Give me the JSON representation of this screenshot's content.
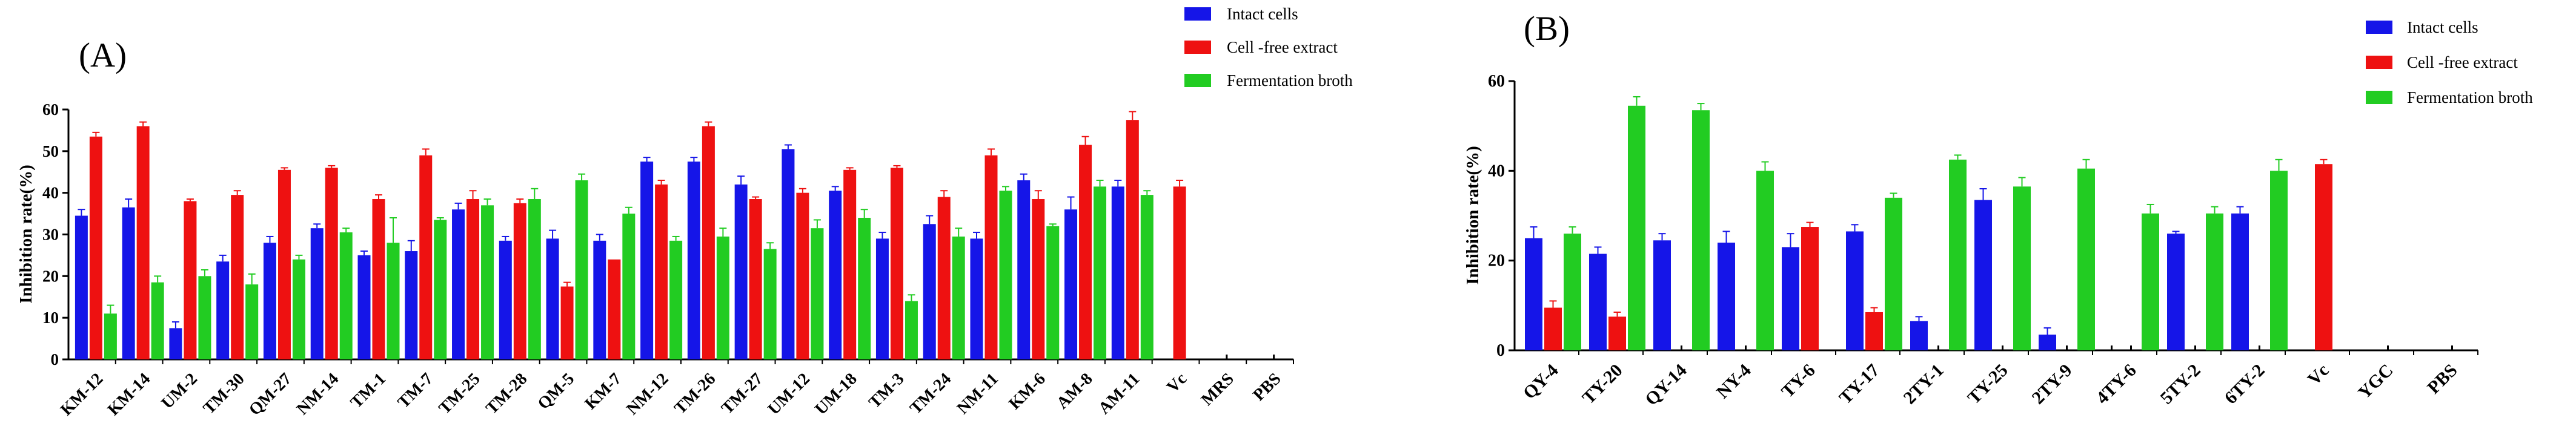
{
  "colors": {
    "intact": "#1515e8",
    "cfe": "#ee1111",
    "broth": "#22cc22",
    "axis": "#000000"
  },
  "chart_data": [
    {
      "type": "bar",
      "panel_label": "(A)",
      "ylabel": "Inhibition rate(%)",
      "xlabel": "",
      "ylim": [
        0,
        60
      ],
      "yticks": [
        "0",
        "10",
        "20",
        "30",
        "40",
        "50",
        "60"
      ],
      "legend_position": "top-right",
      "categories": [
        "KM-12",
        "KM-14",
        "UM-2",
        "TM-30",
        "QM-27",
        "NM-14",
        "TM-1",
        "TM-7",
        "TM-25",
        "TM-28",
        "QM-5",
        "KM-7",
        "NM-12",
        "TM-26",
        "TM-27",
        "UM-12",
        "UM-18",
        "TM-3",
        "TM-24",
        "NM-11",
        "KM-6",
        "AM-8",
        "AM-11",
        "Vc",
        "MRS",
        "PBS"
      ],
      "series": [
        {
          "name": "Intact cells",
          "values": [
            34.5,
            36.5,
            7.5,
            23.5,
            28,
            31.5,
            25,
            26,
            36,
            28.5,
            29,
            28.5,
            47.5,
            47.5,
            42,
            50.5,
            40.5,
            29,
            32.5,
            29,
            43,
            36,
            41.5,
            null,
            null,
            null
          ],
          "errors": [
            1.5,
            2,
            1.5,
            1.5,
            1.5,
            1,
            1,
            2.5,
            1.5,
            1,
            2,
            1.5,
            1,
            1,
            2,
            1,
            1,
            1.5,
            2,
            1.5,
            1.5,
            3,
            1.5,
            null,
            null,
            null
          ]
        },
        {
          "name": "Cell -free extract",
          "values": [
            53.5,
            56,
            38,
            39.5,
            45.5,
            46,
            38.5,
            49,
            38.5,
            37.5,
            17.5,
            24,
            42,
            56,
            38.5,
            40,
            45.5,
            46,
            39,
            49,
            38.5,
            51.5,
            57.5,
            41.5,
            0,
            0
          ],
          "errors": [
            1,
            1,
            0.5,
            1,
            0.5,
            0.5,
            1,
            1.5,
            2,
            1,
            1,
            0,
            1,
            1,
            0.5,
            1,
            0.5,
            0.5,
            1.5,
            1.5,
            2,
            2,
            2,
            1.5,
            0,
            0
          ]
        },
        {
          "name": "Fermentation broth",
          "values": [
            11,
            18.5,
            20,
            18,
            24,
            30.5,
            28,
            33.5,
            37,
            38.5,
            43,
            35,
            28.5,
            29.5,
            26.5,
            31.5,
            34,
            14,
            29.5,
            40.5,
            32,
            41.5,
            39.5,
            null,
            null,
            null
          ],
          "errors": [
            2,
            1.5,
            1.5,
            2.5,
            1,
            1,
            6,
            0.5,
            1.5,
            2.5,
            1.5,
            1.5,
            1,
            2,
            1.5,
            2,
            2,
            1.5,
            2,
            1,
            0.5,
            1.5,
            1,
            null,
            null,
            null
          ]
        }
      ]
    },
    {
      "type": "bar",
      "panel_label": "(B)",
      "ylabel": "Inhibition rate(%)",
      "xlabel": "",
      "ylim": [
        0,
        60
      ],
      "yticks": [
        "0",
        "20",
        "40",
        "60"
      ],
      "legend_position": "top-right",
      "categories": [
        "QY-4",
        "TY-20",
        "QY-14",
        "NY-4",
        "TY-6",
        "TY-17",
        "2TY-1",
        "TY-25",
        "2TY-9",
        "4TY-6",
        "5TY-2",
        "6TY-2",
        "Vc",
        "YGC",
        "PBS"
      ],
      "series": [
        {
          "name": "Intact cells",
          "values": [
            25,
            21.5,
            24.5,
            24,
            23,
            26.5,
            6.5,
            33.5,
            3.5,
            0,
            26,
            30.5,
            null,
            null,
            null
          ],
          "errors": [
            2.5,
            1.5,
            1.5,
            2.5,
            3,
            1.5,
            1,
            2.5,
            1.5,
            0,
            0.5,
            1.5,
            null,
            null,
            null
          ]
        },
        {
          "name": "Cell -free extract",
          "values": [
            9.5,
            7.5,
            0,
            0,
            27.5,
            8.5,
            0,
            0,
            0,
            0,
            0,
            0,
            41.5,
            0,
            0
          ],
          "errors": [
            1.5,
            1,
            0,
            0,
            1,
            1,
            0,
            0,
            0,
            0,
            0,
            0,
            1,
            0,
            0
          ]
        },
        {
          "name": "Fermentation broth",
          "values": [
            26,
            54.5,
            53.5,
            40,
            null,
            34,
            42.5,
            36.5,
            40.5,
            30.5,
            30.5,
            40,
            null,
            null,
            null
          ],
          "errors": [
            1.5,
            2,
            1.5,
            2,
            null,
            1,
            1,
            2,
            2,
            2,
            1.5,
            2.5,
            null,
            null,
            null
          ]
        }
      ]
    }
  ]
}
